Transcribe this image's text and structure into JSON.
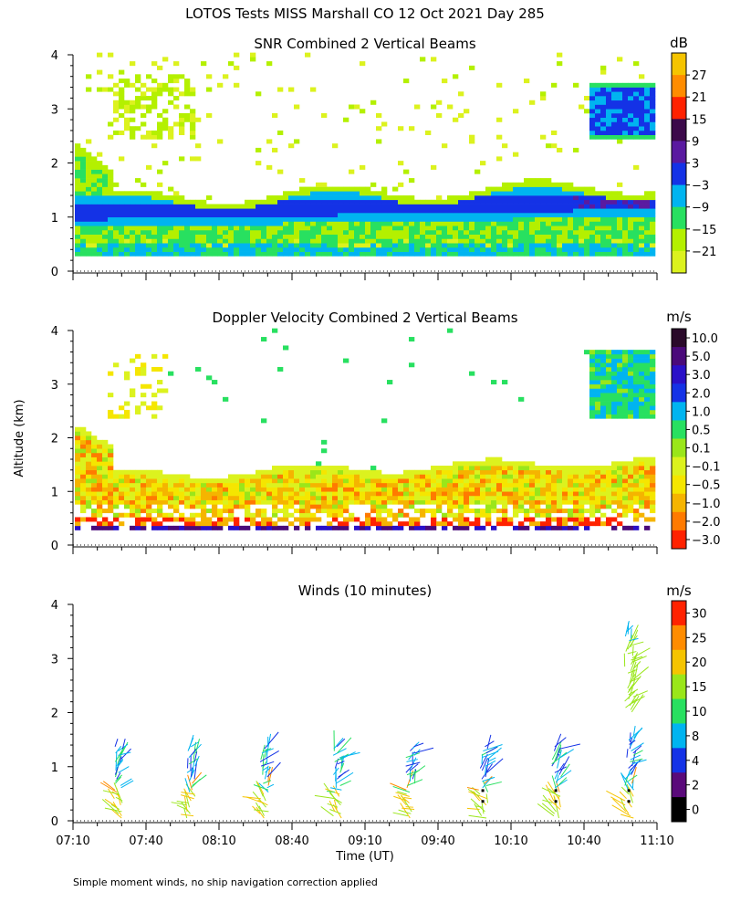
{
  "title": "LOTOS Tests MISS Marshall CO  12 Oct 2021 Day 285",
  "y_axis_label": "Altitude (km)",
  "x_axis_label": "Time (UT)",
  "footnote": "Simple moment winds, no ship navigation correction applied",
  "colors": {
    "background": "#ffffff",
    "axis": "#000000"
  },
  "chart_data": [
    {
      "type": "heatmap",
      "title": "SNR Combined 2 Vertical Beams",
      "ylabel": "Altitude (km)",
      "ylim": [
        0,
        4
      ],
      "yticks": [
        "0",
        "1",
        "2",
        "3",
        "4"
      ],
      "colorbar": {
        "unit": "dB",
        "labels": [
          "27",
          "21",
          "15",
          "9",
          "3",
          "−3",
          "−9",
          "−15",
          "−21"
        ],
        "colors": [
          "#f5c400",
          "#ff8c00",
          "#ff2200",
          "#3c0a4a",
          "#5a1aa0",
          "#1432e6",
          "#00b4f0",
          "#28e060",
          "#b4f000",
          "#dcf21e"
        ]
      }
    },
    {
      "type": "heatmap",
      "title": "Doppler Velocity Combined 2 Vertical Beams",
      "ylabel": "Altitude (km)",
      "ylim": [
        0,
        4
      ],
      "yticks": [
        "0",
        "1",
        "2",
        "3",
        "4"
      ],
      "colorbar": {
        "unit": "m/s",
        "labels": [
          "10.0",
          "5.0",
          "3.0",
          "2.0",
          "1.0",
          "0.5",
          "0.1",
          "−0.1",
          "−0.5",
          "−1.0",
          "−2.0",
          "−3.0"
        ],
        "colors": [
          "#2a0a2a",
          "#4a0a7a",
          "#2a10c8",
          "#1432e6",
          "#00b4f0",
          "#28e060",
          "#9ae61a",
          "#dcf21e",
          "#f5e600",
          "#f5b400",
          "#ff7a00",
          "#ff2200"
        ]
      }
    },
    {
      "type": "scatter",
      "title": "Winds (10 minutes)",
      "ylabel": "Altitude (km)",
      "ylim": [
        0,
        4
      ],
      "yticks": [
        "0",
        "1",
        "2",
        "3",
        "4"
      ],
      "xticks": [
        "07:10",
        "07:40",
        "08:10",
        "08:40",
        "09:10",
        "09:40",
        "10:10",
        "10:40",
        "11:10"
      ],
      "xlabel": "Time (UT)",
      "colorbar": {
        "unit": "m/s",
        "labels": [
          "30",
          "25",
          "20",
          "15",
          "10",
          "8",
          "4",
          "2",
          "0"
        ],
        "colors": [
          "#ff2200",
          "#ff8c00",
          "#f5c400",
          "#9ae61a",
          "#28e060",
          "#00b4f0",
          "#1432e6",
          "#5a0a7a",
          "#000000"
        ]
      }
    }
  ]
}
